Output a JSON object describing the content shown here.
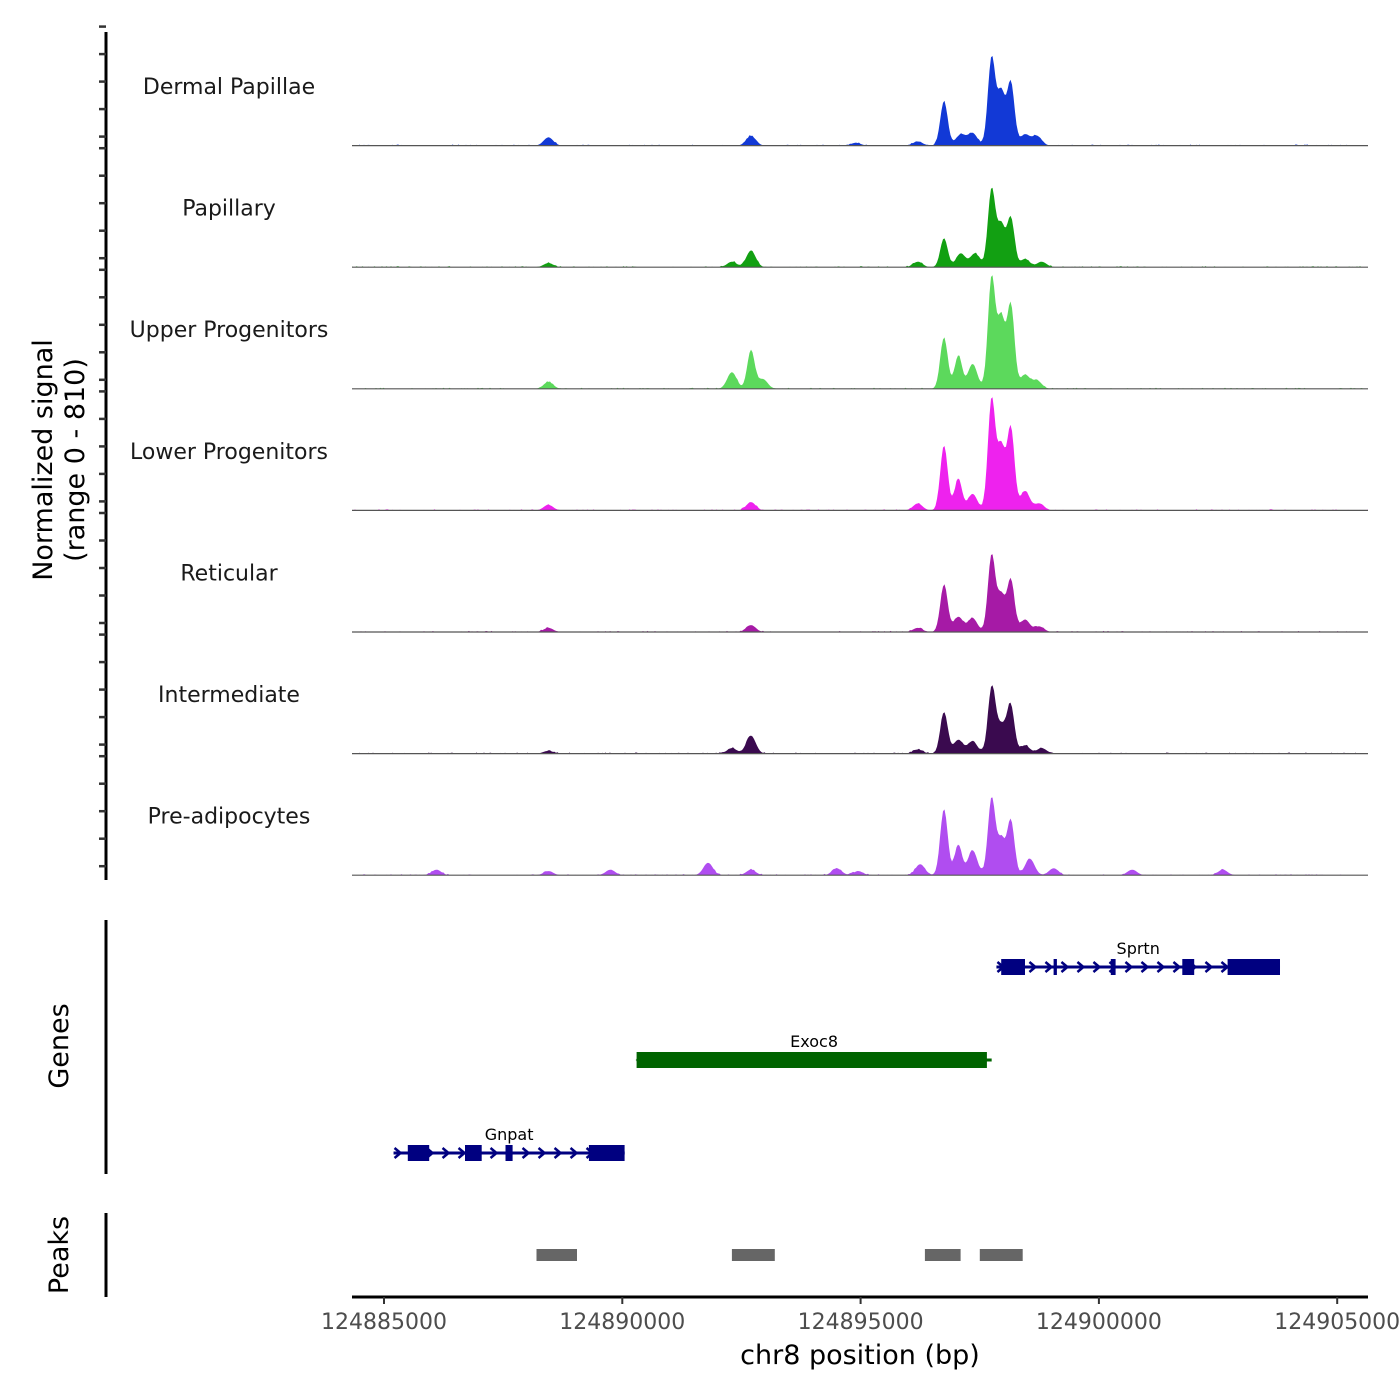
{
  "chart_data": {
    "type": "area",
    "title": "",
    "xlabel": "chr8 position (bp)",
    "ylabel": "Normalized signal\n(range 0 - 810)",
    "ylabel_lines": [
      "Normalized signal",
      "(range 0 - 810)"
    ],
    "y_range": [
      0,
      810
    ],
    "x_range": [
      124884650,
      124905600
    ],
    "x_ticks": [
      124885000,
      124890000,
      124895000,
      124900000,
      124905000
    ],
    "x_tick_labels": [
      "124885000",
      "124890000",
      "124895000",
      "124900000",
      "124905000"
    ],
    "grid": false,
    "tracks": [
      {
        "name": "Dermal Papillae",
        "color": "#1239d6",
        "peaks": [
          [
            124888450,
            60
          ],
          [
            124892700,
            70
          ],
          [
            124894900,
            20
          ],
          [
            124896200,
            30
          ],
          [
            124896750,
            320
          ],
          [
            124897100,
            80
          ],
          [
            124897350,
            90
          ],
          [
            124897750,
            640
          ],
          [
            124897950,
            380
          ],
          [
            124898150,
            460
          ],
          [
            124898450,
            80
          ],
          [
            124898700,
            70
          ]
        ]
      },
      {
        "name": "Papillary",
        "color": "#12a012",
        "peaks": [
          [
            124888450,
            30
          ],
          [
            124892300,
            40
          ],
          [
            124892700,
            120
          ],
          [
            124896200,
            40
          ],
          [
            124896750,
            210
          ],
          [
            124897100,
            100
          ],
          [
            124897400,
            100
          ],
          [
            124897750,
            570
          ],
          [
            124897950,
            300
          ],
          [
            124898150,
            360
          ],
          [
            124898450,
            60
          ],
          [
            124898800,
            40
          ]
        ]
      },
      {
        "name": "Upper Progenitors",
        "color": "#5cd95c",
        "peaks": [
          [
            124888450,
            50
          ],
          [
            124892300,
            120
          ],
          [
            124892700,
            280
          ],
          [
            124892950,
            70
          ],
          [
            124896750,
            370
          ],
          [
            124897050,
            240
          ],
          [
            124897350,
            180
          ],
          [
            124897750,
            810
          ],
          [
            124897950,
            500
          ],
          [
            124898150,
            610
          ],
          [
            124898450,
            100
          ],
          [
            124898700,
            60
          ]
        ]
      },
      {
        "name": "Lower Progenitors",
        "color": "#ee22ee",
        "peaks": [
          [
            124888450,
            40
          ],
          [
            124892700,
            60
          ],
          [
            124896200,
            50
          ],
          [
            124896750,
            470
          ],
          [
            124897050,
            230
          ],
          [
            124897350,
            120
          ],
          [
            124897750,
            810
          ],
          [
            124897950,
            450
          ],
          [
            124898150,
            600
          ],
          [
            124898450,
            140
          ],
          [
            124898750,
            50
          ]
        ]
      },
      {
        "name": "Reticular",
        "color": "#a61aa6",
        "peaks": [
          [
            124888450,
            30
          ],
          [
            124892700,
            50
          ],
          [
            124896200,
            30
          ],
          [
            124896750,
            340
          ],
          [
            124897050,
            110
          ],
          [
            124897350,
            100
          ],
          [
            124897750,
            560
          ],
          [
            124897950,
            260
          ],
          [
            124898150,
            380
          ],
          [
            124898450,
            90
          ],
          [
            124898750,
            40
          ]
        ]
      },
      {
        "name": "Intermediate",
        "color": "#3a0a4f",
        "peaks": [
          [
            124888450,
            20
          ],
          [
            124892300,
            40
          ],
          [
            124892700,
            130
          ],
          [
            124896200,
            30
          ],
          [
            124896750,
            300
          ],
          [
            124897050,
            100
          ],
          [
            124897350,
            90
          ],
          [
            124897750,
            470
          ],
          [
            124897950,
            200
          ],
          [
            124898150,
            340
          ],
          [
            124898450,
            60
          ],
          [
            124898800,
            40
          ]
        ]
      },
      {
        "name": "Pre-adipocytes",
        "color": "#b04df0",
        "peaks": [
          [
            124886100,
            40
          ],
          [
            124888450,
            30
          ],
          [
            124889750,
            40
          ],
          [
            124891800,
            90
          ],
          [
            124892700,
            40
          ],
          [
            124894500,
            50
          ],
          [
            124894950,
            30
          ],
          [
            124896250,
            80
          ],
          [
            124896750,
            480
          ],
          [
            124897050,
            220
          ],
          [
            124897350,
            180
          ],
          [
            124897750,
            560
          ],
          [
            124897950,
            250
          ],
          [
            124898150,
            400
          ],
          [
            124898550,
            120
          ],
          [
            124899050,
            50
          ],
          [
            124900700,
            40
          ],
          [
            124902600,
            40
          ]
        ]
      }
    ]
  },
  "genes": {
    "panel_label": "Genes",
    "items": [
      {
        "name": "Sprtn",
        "color": "#000080",
        "strand": "+",
        "start": 124897850,
        "end": 124903800,
        "exons": [
          [
            124897950,
            124898450
          ],
          [
            124899050,
            124899120
          ],
          [
            124900250,
            124900350
          ],
          [
            124901750,
            124902000
          ],
          [
            124902700,
            124903800
          ]
        ]
      },
      {
        "name": "Exoc8",
        "color": "#006400",
        "strand": "-",
        "start": 124890300,
        "end": 124897750,
        "exons": [
          [
            124890300,
            124897650
          ]
        ]
      },
      {
        "name": "Gnpat",
        "color": "#000080",
        "strand": "+",
        "start": 124885200,
        "end": 124890050,
        "exons": [
          [
            124885500,
            124885950
          ],
          [
            124886700,
            124887050
          ],
          [
            124887550,
            124887700
          ],
          [
            124889300,
            124890050
          ]
        ]
      }
    ]
  },
  "peaks_panel": {
    "panel_label": "Peaks",
    "color": "#666666",
    "regions": [
      [
        124888200,
        124889050
      ],
      [
        124892300,
        124893200
      ],
      [
        124896350,
        124897100
      ],
      [
        124897500,
        124898400
      ]
    ]
  }
}
